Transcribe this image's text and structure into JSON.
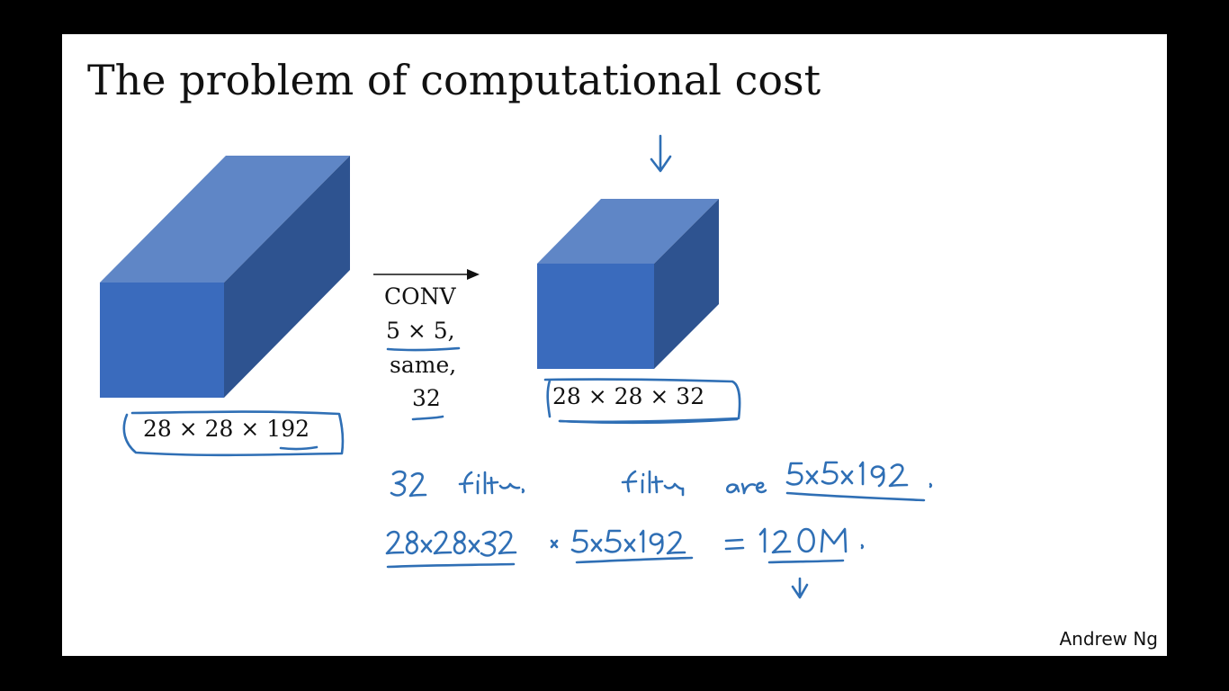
{
  "slide": {
    "title": "The problem of computational cost",
    "author": "Andrew Ng"
  },
  "input_volume": {
    "dims_label": "28 × 28 × 192"
  },
  "conv_operation": {
    "label": "CONV",
    "kernel": "5 × 5,",
    "padding": "same,",
    "filters": "32"
  },
  "output_volume": {
    "dims_label": "28 × 28 × 32"
  },
  "handwritten_notes": {
    "line1_left": "32 filters.",
    "line1_right": "filters are 5x5x192.",
    "line2": "28x28x32 × 5x5x192 = 120M."
  },
  "colors": {
    "cube_front": "#3a6bbd",
    "cube_top": "#5f86c6",
    "cube_side": "#2e5390",
    "ink": "#2f6fb5"
  }
}
